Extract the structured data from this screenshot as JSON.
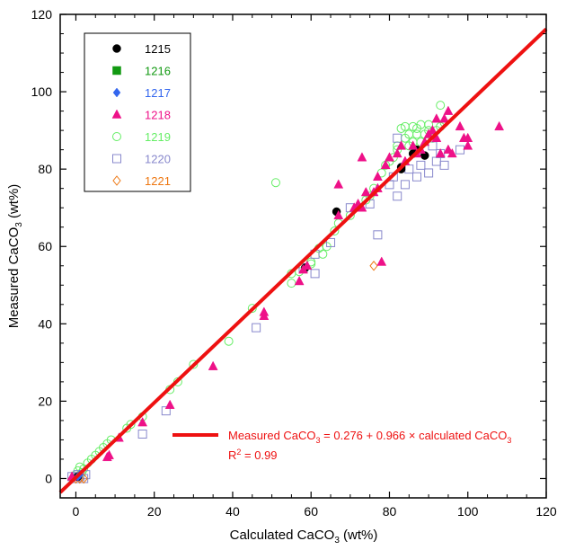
{
  "chart_data": {
    "type": "scatter",
    "xlabel": "Calculated CaCO",
    "xlabel_sub": "3",
    "xlabel_suffix": " (wt%)",
    "ylabel": "Measured CaCO",
    "ylabel_sub": "3",
    "ylabel_suffix": " (wt%)",
    "xlim": [
      -4,
      120
    ],
    "ylim": [
      -5,
      120
    ],
    "xticks": [
      0,
      20,
      40,
      60,
      80,
      100,
      120
    ],
    "yticks": [
      0,
      20,
      40,
      60,
      80,
      100,
      120
    ],
    "grid": false,
    "legend_position": "top-left",
    "regression": {
      "intercept": 0.276,
      "slope": 0.966,
      "color": "#ee1111",
      "equation_parts": [
        "Measured CaCO",
        "3",
        " = 0.276 + 0.966 × calculated CaCO",
        "3"
      ],
      "r2_parts": [
        "R",
        "2",
        " = 0.99"
      ]
    },
    "series": [
      {
        "name": "1215",
        "marker": "circle",
        "color": "#000000",
        "filled": true,
        "points": [
          [
            0.5,
            0.5
          ],
          [
            58.5,
            54.5
          ],
          [
            66.5,
            69
          ],
          [
            83,
            80
          ],
          [
            83,
            80.5
          ],
          [
            86,
            84
          ],
          [
            87,
            85
          ],
          [
            89,
            83.5
          ]
        ]
      },
      {
        "name": "1216",
        "marker": "square",
        "color": "#119911",
        "filled": true,
        "points": []
      },
      {
        "name": "1217",
        "marker": "diamond",
        "color": "#3366ee",
        "filled": true,
        "points": [
          [
            1,
            1
          ],
          [
            0.5,
            0.5
          ]
        ]
      },
      {
        "name": "1218",
        "marker": "triangle",
        "color": "#ee1188",
        "filled": true,
        "points": [
          [
            -1,
            0.5
          ],
          [
            8,
            5.5
          ],
          [
            8.5,
            6
          ],
          [
            11,
            10.5
          ],
          [
            17,
            14.5
          ],
          [
            24,
            19
          ],
          [
            35,
            29
          ],
          [
            48,
            42
          ],
          [
            48,
            43
          ],
          [
            57,
            51
          ],
          [
            58,
            54
          ],
          [
            59,
            55
          ],
          [
            67,
            76
          ],
          [
            67,
            68
          ],
          [
            71,
            70
          ],
          [
            72,
            71
          ],
          [
            73,
            70
          ],
          [
            73,
            83
          ],
          [
            74,
            74
          ],
          [
            76,
            74
          ],
          [
            77,
            75
          ],
          [
            77,
            78
          ],
          [
            78,
            56
          ],
          [
            79,
            81
          ],
          [
            80,
            83
          ],
          [
            82,
            84
          ],
          [
            83,
            86
          ],
          [
            84,
            82
          ],
          [
            86,
            86
          ],
          [
            87,
            84
          ],
          [
            88,
            85
          ],
          [
            89,
            87
          ],
          [
            90,
            89
          ],
          [
            91,
            90
          ],
          [
            92,
            93
          ],
          [
            92,
            88
          ],
          [
            93,
            84
          ],
          [
            94,
            93
          ],
          [
            95,
            95
          ],
          [
            95,
            85
          ],
          [
            96,
            84
          ],
          [
            98,
            91
          ],
          [
            99,
            88
          ],
          [
            100,
            86
          ],
          [
            100,
            88
          ],
          [
            108,
            91
          ]
        ]
      },
      {
        "name": "1219",
        "marker": "circle",
        "color": "#66ee66",
        "filled": false,
        "points": [
          [
            0,
            1
          ],
          [
            0.5,
            2
          ],
          [
            1,
            3
          ],
          [
            1.5,
            1.5
          ],
          [
            2,
            2.5
          ],
          [
            3,
            4
          ],
          [
            4,
            5
          ],
          [
            5,
            6
          ],
          [
            6,
            7
          ],
          [
            7,
            8
          ],
          [
            8,
            9
          ],
          [
            9,
            10
          ],
          [
            13,
            13
          ],
          [
            14,
            14
          ],
          [
            17,
            16
          ],
          [
            24,
            23
          ],
          [
            26,
            25
          ],
          [
            30,
            29.5
          ],
          [
            39,
            35.5
          ],
          [
            45,
            44
          ],
          [
            51,
            76.5
          ],
          [
            55,
            53
          ],
          [
            55,
            50.5
          ],
          [
            57,
            53.5
          ],
          [
            60,
            55.5
          ],
          [
            60,
            56
          ],
          [
            62,
            59.5
          ],
          [
            63,
            58
          ],
          [
            64,
            60
          ],
          [
            66,
            64
          ],
          [
            67,
            66
          ],
          [
            70,
            68
          ],
          [
            74,
            72
          ],
          [
            75,
            73
          ],
          [
            76,
            75
          ],
          [
            78,
            79
          ],
          [
            79,
            81
          ],
          [
            80,
            82
          ],
          [
            81,
            83
          ],
          [
            82,
            85
          ],
          [
            82,
            86
          ],
          [
            83,
            90.5
          ],
          [
            84,
            88
          ],
          [
            84,
            91
          ],
          [
            85,
            86
          ],
          [
            85,
            89
          ],
          [
            86,
            87
          ],
          [
            86,
            91
          ],
          [
            87,
            89
          ],
          [
            87,
            90.5
          ],
          [
            88,
            91.5
          ],
          [
            88,
            87
          ],
          [
            89,
            89
          ],
          [
            90,
            90
          ],
          [
            90,
            91.5
          ],
          [
            91,
            88
          ],
          [
            92,
            90
          ],
          [
            93,
            91
          ],
          [
            93,
            96.5
          ],
          [
            94,
            92
          ]
        ]
      },
      {
        "name": "1220",
        "marker": "square",
        "color": "#8888cc",
        "filled": false,
        "points": [
          [
            -1,
            0.5
          ],
          [
            0,
            0
          ],
          [
            0.5,
            1
          ],
          [
            1,
            0.5
          ],
          [
            2,
            0
          ],
          [
            2.5,
            1
          ],
          [
            17,
            11.5
          ],
          [
            23,
            17.5
          ],
          [
            46,
            39
          ],
          [
            58,
            54.5
          ],
          [
            61,
            53
          ],
          [
            61,
            58
          ],
          [
            65,
            61
          ],
          [
            70,
            70
          ],
          [
            75,
            71
          ],
          [
            77,
            63
          ],
          [
            80,
            76
          ],
          [
            81,
            78
          ],
          [
            82,
            73
          ],
          [
            82,
            88
          ],
          [
            84,
            76
          ],
          [
            85,
            80
          ],
          [
            87,
            78
          ],
          [
            88,
            81
          ],
          [
            90,
            79
          ],
          [
            91,
            86
          ],
          [
            92,
            82
          ],
          [
            93,
            84
          ],
          [
            94,
            81
          ],
          [
            98,
            85
          ]
        ]
      },
      {
        "name": "1221",
        "marker": "diamond",
        "color": "#ee7711",
        "filled": false,
        "points": [
          [
            -1,
            0
          ],
          [
            0,
            0
          ],
          [
            1,
            0
          ],
          [
            2,
            0
          ],
          [
            0.5,
            0.5
          ],
          [
            76,
            55
          ]
        ]
      }
    ]
  }
}
